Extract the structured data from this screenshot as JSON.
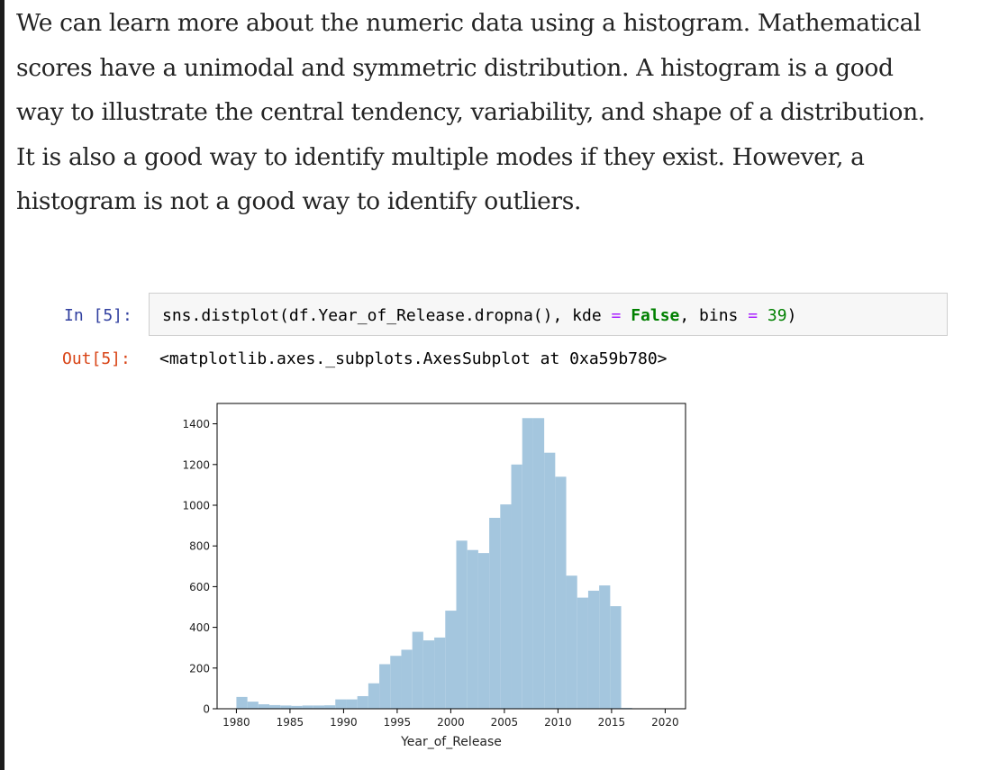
{
  "article": {
    "lines": [
      "We can learn more about the numeric data using a histogram. Mathematical",
      "scores have a unimodal and symmetric distribution. A histogram is a good",
      "way to illustrate the central tendency, variability, and shape of a distribution.",
      "It is also a good way to identify multiple modes if they exist. However, a",
      "histogram is not a good way to identify outliers."
    ]
  },
  "cell": {
    "in_prompt": "In [5]:",
    "out_prompt": "Out[5]:",
    "code": {
      "part1": "sns.distplot(df.Year_of_Release.dropna(), kde ",
      "op1": "=",
      "kw": "False",
      "part2": ", bins ",
      "op2": "=",
      "num": "39",
      "part3": ")"
    },
    "output_text": "<matplotlib.axes._subplots.AxesSubplot at 0xa59b780>"
  },
  "colors": {
    "bar_fill": "#a4c6de",
    "in_prompt": "#303f9f",
    "out_prompt": "#d84315"
  },
  "chart_data": {
    "type": "bar",
    "title": "",
    "xlabel": "Year_of_Release",
    "ylabel": "",
    "xlim": [
      1978.2,
      2021.9
    ],
    "ylim": [
      0,
      1500
    ],
    "xticks": [
      1980,
      1985,
      1990,
      1995,
      2000,
      2005,
      2010,
      2015,
      2020
    ],
    "yticks": [
      0,
      200,
      400,
      600,
      800,
      1000,
      1200,
      1400
    ],
    "bin_start": 1980,
    "bin_width": 1.0256,
    "values": [
      58,
      35,
      22,
      18,
      16,
      14,
      16,
      16,
      17,
      46,
      46,
      62,
      125,
      219,
      260,
      290,
      378,
      336,
      350,
      482,
      826,
      780,
      765,
      938,
      1004,
      1200,
      1428,
      1428,
      1258,
      1140,
      654,
      546,
      580,
      606,
      504,
      4,
      0,
      0,
      0
    ]
  }
}
